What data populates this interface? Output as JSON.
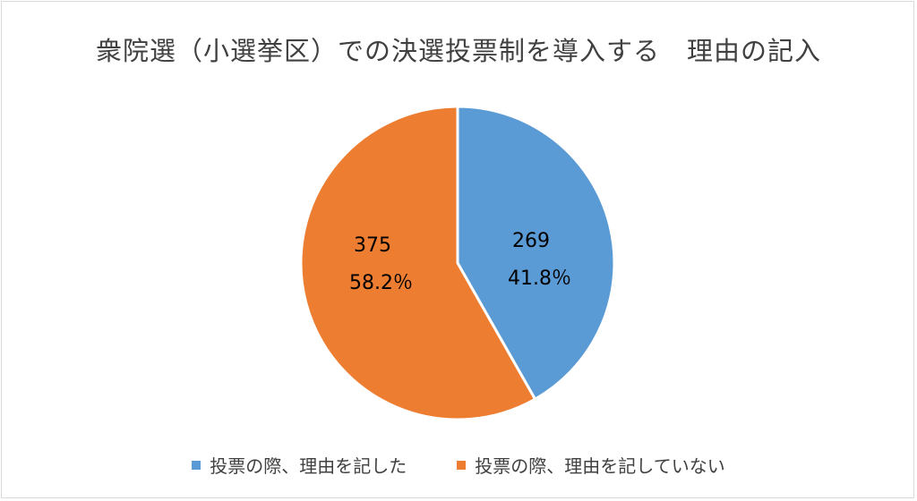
{
  "chart_data": {
    "type": "pie",
    "title": "衆院選（小選挙区）での決選投票制を導入する　理由の記入",
    "slices": [
      {
        "name": "投票の際、理由を記した",
        "value": 269,
        "percent_label": "41.8％",
        "color": "#5b9bd5"
      },
      {
        "name": "投票の際、理由を記していない",
        "value": 375,
        "percent_label": "58.2％",
        "color": "#ed7d31"
      }
    ],
    "start_angle_deg": 0,
    "direction": "clockwise",
    "legend_position": "bottom"
  }
}
